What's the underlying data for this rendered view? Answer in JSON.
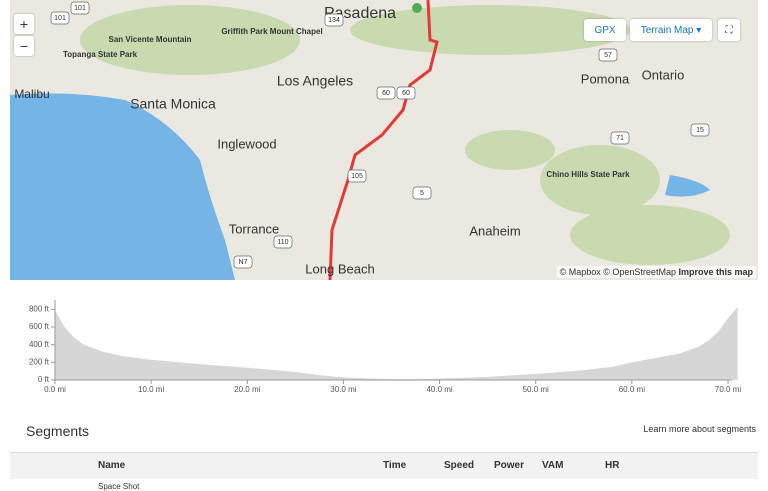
{
  "map": {
    "places": [
      "Pasadena",
      "Griffith Park Mount Chapel",
      "San Vicente Mountain",
      "Topanga State Park",
      "Malibu",
      "Santa Monica",
      "Los Angeles",
      "Inglewood",
      "Torrance",
      "Long Beach",
      "Anaheim",
      "Pomona",
      "Ontario",
      "Chino Hills State Park"
    ],
    "shields": [
      "134",
      "101",
      "101",
      "60",
      "60",
      "105",
      "110",
      "5",
      "71",
      "15",
      "N7",
      "57"
    ],
    "gpx": "GPX",
    "map_type": "Terrain Map",
    "zoom_in": "+",
    "zoom_out": "−",
    "attribution": [
      "© Mapbox",
      "© OpenStreetMap",
      "Improve this map"
    ]
  },
  "elevation": {
    "type": "area",
    "color": "#d6d6d6",
    "x": [
      0,
      1,
      2,
      3,
      5,
      7,
      10,
      13,
      15,
      20,
      25,
      28,
      30,
      33,
      35,
      38,
      40,
      45,
      50,
      55,
      58,
      60,
      62,
      65,
      67,
      68,
      69,
      70,
      71
    ],
    "values": [
      790,
      600,
      480,
      400,
      320,
      270,
      230,
      200,
      180,
      140,
      90,
      50,
      30,
      15,
      10,
      10,
      15,
      35,
      70,
      110,
      150,
      200,
      240,
      300,
      380,
      450,
      550,
      700,
      830
    ],
    "xlim": [
      0,
      71
    ],
    "ylim": [
      0,
      850
    ],
    "xticks": [
      {
        "value": 0,
        "label": "0.0 mi"
      },
      {
        "value": 10,
        "label": "10.0 mi"
      },
      {
        "value": 20,
        "label": "20.0 mi"
      },
      {
        "value": 30,
        "label": "30.0 mi"
      },
      {
        "value": 40,
        "label": "40.0 mi"
      },
      {
        "value": 50,
        "label": "50.0 mi"
      },
      {
        "value": 60,
        "label": "60.0 mi"
      },
      {
        "value": 70,
        "label": "70.0 mi"
      }
    ],
    "yticks": [
      {
        "value": 0,
        "label": "0 ft"
      },
      {
        "value": 200,
        "label": "200 ft"
      },
      {
        "value": 400,
        "label": "400 ft"
      },
      {
        "value": 600,
        "label": "600 ft"
      },
      {
        "value": 800,
        "label": "800 ft"
      }
    ]
  },
  "segments": {
    "title": "Segments",
    "link": "Learn more about segments",
    "columns": [
      "Name",
      "Time",
      "Speed",
      "Power",
      "VAM",
      "HR"
    ],
    "rows": [
      [
        "Space Shot"
      ]
    ]
  }
}
